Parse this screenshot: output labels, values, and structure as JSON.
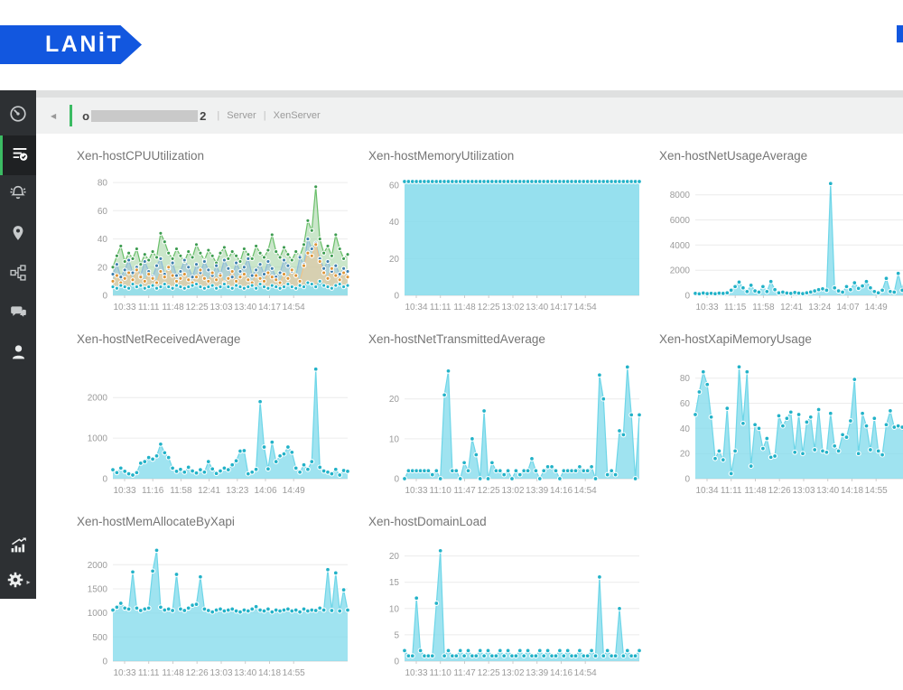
{
  "brand": {
    "logo_text": "LANİT",
    "accent_blue": "#1257DF"
  },
  "sidebar": {
    "items": [
      {
        "icon": "gauge-icon",
        "active": false
      },
      {
        "icon": "monitor-list-check-icon",
        "active": true
      },
      {
        "icon": "alarm-bell-icon",
        "active": false
      },
      {
        "icon": "location-pin-icon",
        "active": false
      },
      {
        "icon": "topology-icon",
        "active": false
      },
      {
        "icon": "chat-icon",
        "active": false
      },
      {
        "icon": "user-icon",
        "active": false
      },
      {
        "icon": "stats-chart-icon",
        "active": false
      },
      {
        "icon": "gear-icon",
        "active": false
      }
    ]
  },
  "breadcrumb": {
    "back_icon": "◀",
    "host_prefix": "o",
    "host_suffix": "2",
    "sep1": "|",
    "section1": "Server",
    "sep2": "|",
    "section2": "XenServer"
  },
  "chart_data": [
    {
      "type": "area",
      "title": "Xen-hostCPUUtilization",
      "y_ticks": [
        0,
        20,
        40,
        60,
        80
      ],
      "y_max": 82,
      "x_ticks": [
        "10:33",
        "11:11",
        "11:48",
        "12:25",
        "13:03",
        "13:40",
        "14:17",
        "14:54"
      ],
      "grid": true,
      "legend": "none",
      "series": [
        {
          "name": "s-green",
          "dot": "#3d9c50",
          "line": "#6abf6a",
          "fill": "rgba(150,205,150,0.5)",
          "values": [
            20,
            28,
            35,
            24,
            30,
            26,
            33,
            22,
            29,
            25,
            31,
            27,
            44,
            38,
            30,
            26,
            33,
            28,
            24,
            31,
            27,
            36,
            30,
            25,
            32,
            28,
            23,
            30,
            34,
            26,
            31,
            28,
            24,
            33,
            29,
            26,
            35,
            30,
            27,
            32,
            43,
            31,
            27,
            34,
            29,
            25,
            31,
            28,
            36,
            53,
            46,
            77,
            40,
            30,
            35,
            28,
            43,
            33,
            26,
            29
          ]
        },
        {
          "name": "s-blue",
          "dot": "#3d7fae",
          "line": "#8fbcd9",
          "fill": "rgba(150,190,220,0.5)",
          "values": [
            15,
            22,
            13,
            18,
            25,
            16,
            20,
            14,
            24,
            17,
            13,
            21,
            26,
            15,
            19,
            23,
            14,
            17,
            25,
            20,
            13,
            22,
            16,
            24,
            18,
            14,
            21,
            15,
            25,
            19,
            13,
            23,
            17,
            20,
            26,
            14,
            18,
            22,
            15,
            24,
            19,
            13,
            16,
            25,
            21,
            17,
            14,
            27,
            22,
            40,
            33,
            37,
            26,
            19,
            24,
            17,
            21,
            15,
            19,
            17
          ]
        },
        {
          "name": "s-orange",
          "dot": "#dd9436",
          "line": "#f0c48a",
          "fill": "rgba(248,205,150,0.55)",
          "values": [
            10,
            14,
            9,
            12,
            16,
            11,
            18,
            13,
            10,
            15,
            12,
            9,
            17,
            13,
            20,
            14,
            10,
            12,
            15,
            11,
            9,
            13,
            18,
            12,
            10,
            16,
            11,
            14,
            9,
            12,
            17,
            10,
            13,
            15,
            11,
            9,
            14,
            12,
            10,
            16,
            13,
            11,
            9,
            15,
            12,
            18,
            14,
            10,
            21,
            30,
            28,
            36,
            24,
            16,
            12,
            19,
            14,
            11,
            16,
            13
          ]
        },
        {
          "name": "s-cyan",
          "dot": "#22b2c8",
          "line": "#6ed6e8",
          "fill": "rgba(145,223,238,0.9)",
          "values": [
            6,
            5,
            7,
            6,
            5,
            8,
            6,
            7,
            5,
            6,
            7,
            5,
            6,
            8,
            6,
            5,
            7,
            6,
            5,
            6,
            7,
            8,
            6,
            5,
            6,
            7,
            5,
            6,
            8,
            6,
            5,
            7,
            6,
            5,
            6,
            7,
            5,
            8,
            6,
            5,
            7,
            6,
            5,
            6,
            8,
            6,
            5,
            7,
            6,
            9,
            8,
            6,
            10,
            7,
            6,
            5,
            7,
            8,
            6,
            7
          ]
        }
      ]
    },
    {
      "type": "area",
      "title": "Xen-hostMemoryUtilization",
      "y_ticks": [
        0,
        20,
        40,
        60
      ],
      "y_max": 63,
      "x_ticks": [
        "10:34",
        "11:11",
        "11:48",
        "12:25",
        "13:02",
        "13:40",
        "14:17",
        "14:54"
      ],
      "grid": true,
      "legend": "none",
      "series": [
        {
          "name": "memory",
          "dot": "#22b2c8",
          "line": "#6ed6e8",
          "fill": "rgba(135,220,236,0.88)",
          "values": [
            62,
            62,
            62,
            62,
            62,
            62,
            62,
            62,
            62,
            62,
            62,
            62,
            62,
            62,
            62,
            62,
            62,
            62,
            62,
            62,
            62,
            62,
            62,
            62,
            62,
            62,
            62,
            62,
            62,
            62,
            62,
            62,
            62,
            62,
            62,
            62,
            62,
            62,
            62,
            62,
            62,
            62,
            62,
            62,
            62,
            62,
            62,
            62,
            62,
            62,
            62,
            62,
            62,
            62,
            62,
            62,
            62,
            62,
            62,
            62
          ]
        }
      ]
    },
    {
      "type": "area",
      "title": "Xen-hostNetUsageAverage",
      "y_ticks": [
        0,
        2000,
        4000,
        6000,
        8000
      ],
      "y_max": 9200,
      "x_ticks": [
        "10:33",
        "11:15",
        "11:58",
        "12:41",
        "13:24",
        "14:07",
        "14:49"
      ],
      "grid": true,
      "legend": "none",
      "series": [
        {
          "name": "net-usage",
          "dot": "#22b2c8",
          "line": "#6ed6e8",
          "fill": "rgba(135,220,236,0.8)",
          "values": [
            150,
            120,
            180,
            140,
            160,
            130,
            170,
            150,
            200,
            400,
            700,
            1050,
            600,
            300,
            800,
            350,
            250,
            700,
            300,
            1100,
            450,
            200,
            250,
            180,
            150,
            220,
            170,
            140,
            200,
            260,
            350,
            450,
            520,
            400,
            8900,
            600,
            350,
            250,
            700,
            450,
            1000,
            550,
            750,
            1100,
            600,
            300,
            200,
            400,
            1350,
            300,
            250,
            1750,
            400,
            2000,
            300,
            250,
            300,
            200,
            350,
            250
          ]
        }
      ]
    },
    {
      "type": "area",
      "title": "Xen-hostNetReceivedAverage",
      "y_ticks": [
        0,
        1000,
        2000
      ],
      "y_max": 2850,
      "x_ticks": [
        "10:33",
        "11:16",
        "11:58",
        "12:41",
        "13:23",
        "14:06",
        "14:49"
      ],
      "grid": true,
      "legend": "none",
      "series": [
        {
          "name": "net-received",
          "dot": "#22b2c8",
          "line": "#6ed6e8",
          "fill": "rgba(135,220,236,0.8)",
          "values": [
            220,
            150,
            260,
            180,
            120,
            90,
            150,
            380,
            420,
            520,
            480,
            560,
            850,
            640,
            520,
            260,
            180,
            230,
            160,
            280,
            190,
            140,
            220,
            160,
            420,
            240,
            130,
            190,
            260,
            220,
            340,
            440,
            680,
            690,
            120,
            160,
            230,
            1900,
            780,
            240,
            900,
            420,
            560,
            610,
            780,
            650,
            260,
            160,
            340,
            230,
            420,
            2700,
            280,
            190,
            160,
            120,
            230,
            90,
            200,
            180
          ]
        }
      ]
    },
    {
      "type": "area",
      "title": "Xen-hostNetTransmittedAverage",
      "y_ticks": [
        0,
        10,
        20
      ],
      "y_max": 29,
      "x_ticks": [
        "10:33",
        "11:10",
        "11:47",
        "12:25",
        "13:02",
        "13:39",
        "14:16",
        "14:54"
      ],
      "grid": true,
      "legend": "none",
      "series": [
        {
          "name": "net-transmitted",
          "dot": "#22b2c8",
          "line": "#6ed6e8",
          "fill": "rgba(135,220,236,0.8)",
          "values": [
            0,
            2,
            2,
            2,
            2,
            2,
            2,
            1,
            2,
            0,
            21,
            27,
            2,
            2,
            0,
            4,
            2,
            10,
            6,
            0,
            17,
            0,
            4,
            2,
            2,
            1,
            2,
            0,
            2,
            1,
            2,
            2,
            5,
            2,
            0,
            2,
            3,
            3,
            2,
            0,
            2,
            2,
            2,
            2,
            3,
            2,
            2,
            3,
            0,
            26,
            20,
            1,
            2,
            1,
            12,
            11,
            28,
            16,
            0,
            16
          ]
        }
      ]
    },
    {
      "type": "area",
      "title": "Xen-hostXapiMemoryUsage",
      "y_ticks": [
        0,
        20,
        40,
        60,
        80
      ],
      "y_max": 92,
      "x_ticks": [
        "10:34",
        "11:11",
        "11:48",
        "12:26",
        "13:03",
        "13:40",
        "14:18",
        "14:55"
      ],
      "grid": true,
      "legend": "none",
      "series": [
        {
          "name": "xapi-memory",
          "dot": "#22b2c8",
          "line": "#6ed6e8",
          "fill": "rgba(135,220,236,0.8)",
          "values": [
            51,
            69,
            85,
            75,
            49,
            16,
            22,
            15,
            56,
            4,
            22,
            89,
            44,
            85,
            10,
            43,
            40,
            24,
            32,
            17,
            18,
            50,
            42,
            48,
            53,
            21,
            51,
            20,
            45,
            49,
            23,
            55,
            22,
            21,
            52,
            26,
            22,
            35,
            33,
            46,
            79,
            20,
            52,
            42,
            23,
            48,
            22,
            19,
            43,
            54,
            41,
            42,
            41,
            30,
            44,
            40,
            53,
            41,
            42,
            53
          ]
        }
      ]
    },
    {
      "type": "area",
      "title": "Xen-hostMemAllocateByXapi",
      "y_ticks": [
        0,
        500,
        1000,
        1500,
        2000
      ],
      "y_max": 2400,
      "x_ticks": [
        "10:33",
        "11:11",
        "11:48",
        "12:26",
        "13:03",
        "13:40",
        "14:18",
        "14:55"
      ],
      "grid": true,
      "legend": "none",
      "series": [
        {
          "name": "mem-allocate",
          "dot": "#22b2c8",
          "line": "#6ed6e8",
          "fill": "rgba(135,220,236,0.8)",
          "values": [
            1060,
            1120,
            1200,
            1100,
            1080,
            1850,
            1100,
            1050,
            1080,
            1100,
            1870,
            2300,
            1120,
            1060,
            1080,
            1050,
            1800,
            1080,
            1050,
            1100,
            1160,
            1180,
            1750,
            1080,
            1050,
            1020,
            1060,
            1080,
            1040,
            1060,
            1080,
            1040,
            1020,
            1060,
            1040,
            1080,
            1130,
            1060,
            1040,
            1080,
            1020,
            1060,
            1040,
            1060,
            1080,
            1040,
            1060,
            1020,
            1080,
            1040,
            1060,
            1050,
            1100,
            1060,
            1900,
            1050,
            1830,
            1040,
            1480,
            1060
          ]
        }
      ]
    },
    {
      "type": "area",
      "title": "Xen-hostDomainLoad",
      "y_ticks": [
        0,
        5,
        10,
        15,
        20
      ],
      "y_max": 22,
      "x_ticks": [
        "10:33",
        "11:10",
        "11:47",
        "12:25",
        "13:02",
        "13:39",
        "14:16",
        "14:54"
      ],
      "grid": true,
      "legend": "none",
      "series": [
        {
          "name": "domain-load",
          "dot": "#22b2c8",
          "line": "#6ed6e8",
          "fill": "rgba(135,220,236,0.8)",
          "values": [
            2,
            1,
            1,
            12,
            2,
            1,
            1,
            1,
            11,
            21,
            1,
            2,
            1,
            1,
            2,
            1,
            2,
            1,
            1,
            2,
            1,
            2,
            1,
            1,
            2,
            1,
            2,
            1,
            1,
            2,
            1,
            2,
            1,
            1,
            2,
            1,
            2,
            1,
            1,
            2,
            1,
            2,
            1,
            1,
            2,
            1,
            1,
            2,
            1,
            16,
            1,
            2,
            1,
            1,
            10,
            1,
            2,
            1,
            1,
            2
          ]
        }
      ]
    }
  ]
}
